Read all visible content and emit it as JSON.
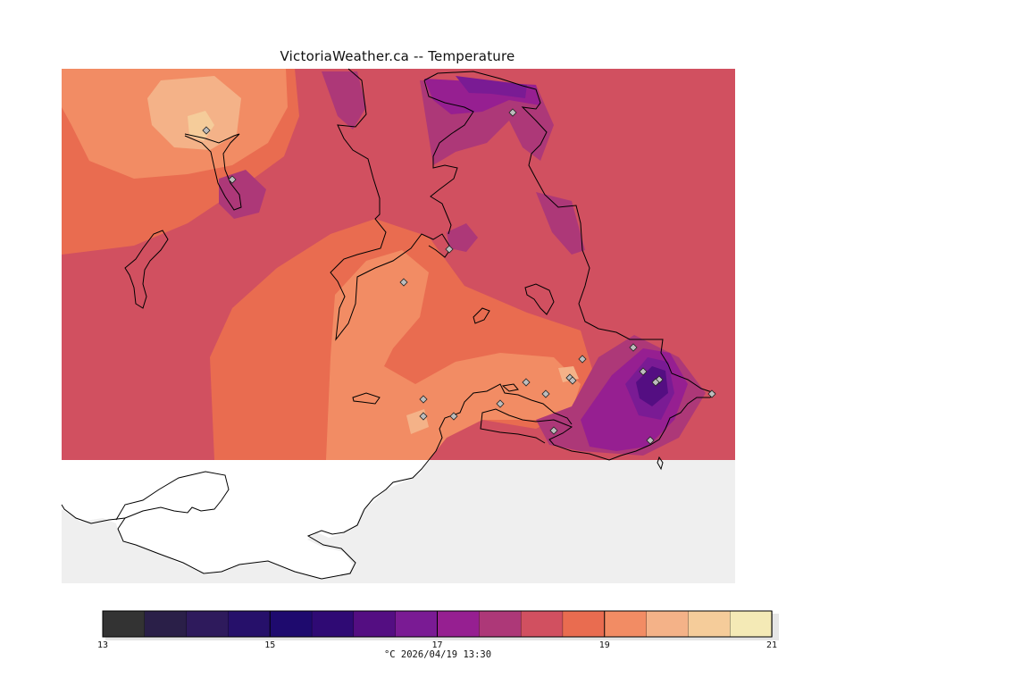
{
  "title": "VictoriaWeather.ca -- Temperature",
  "colorbar": {
    "min": 13,
    "max": 21,
    "colors": [
      "#333333",
      "#2a1f48",
      "#2e1a5c",
      "#26106a",
      "#1e0a6e",
      "#2f0a74",
      "#540e82",
      "#7a1b94",
      "#961f91",
      "#ad3878",
      "#d15060",
      "#e96c50",
      "#f28c64",
      "#f4b288",
      "#f5cc9a",
      "#f4eab6"
    ],
    "tick_labels": [
      "13",
      "15",
      "17",
      "19",
      "21"
    ],
    "caption": "°C  2026/04/19 13:30"
  },
  "map": {
    "background": "#efefef",
    "land_fill": "#ffffff",
    "station_count": 21
  }
}
